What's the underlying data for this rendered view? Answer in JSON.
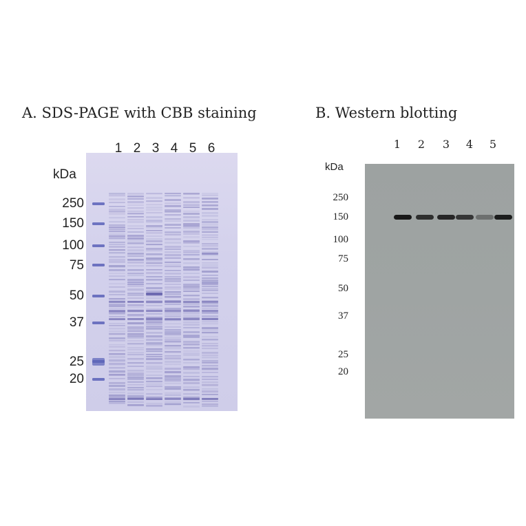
{
  "panel_a": {
    "title": "A. SDS-PAGE with CBB staining",
    "unit": "kDa",
    "lanes": [
      "1",
      "2",
      "3",
      "4",
      "5",
      "6"
    ],
    "markers": [
      "250",
      "150",
      "100",
      "75",
      "50",
      "37",
      "25",
      "20"
    ]
  },
  "panel_b": {
    "title": "B. Western blotting",
    "unit": "kDa",
    "lanes": [
      "1",
      "2",
      "3",
      "4",
      "5"
    ],
    "markers": [
      "250",
      "150",
      "100",
      "75",
      "50",
      "37",
      "25",
      "20"
    ]
  },
  "colors": {
    "gel_background": "#d3d1ec",
    "gel_band": "#5e5aa8",
    "marker_band": "#5a62b8",
    "blot_background": "#9fa4a3",
    "blot_band": "#111111"
  }
}
